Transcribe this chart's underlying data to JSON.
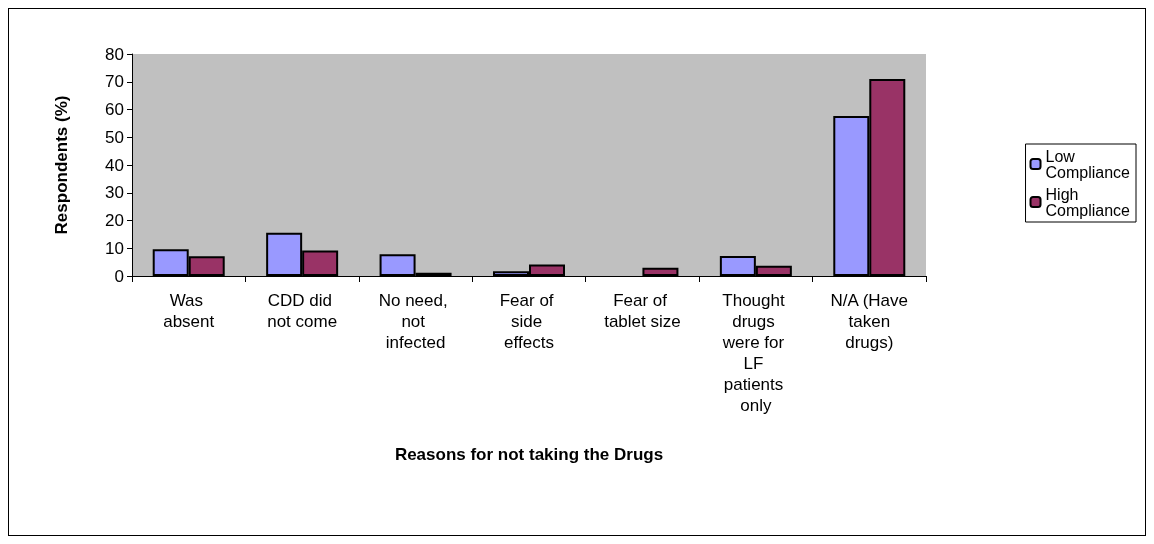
{
  "chart_data": {
    "type": "bar",
    "xlabel": "Reasons for not taking the Drugs",
    "ylabel": "Respondents (%)",
    "categories": [
      "Was absent",
      "CDD did not come",
      "No need, not infected",
      "Fear of side effects",
      "Fear of tablet size",
      "Thought drugs were for LF patients only",
      "N/A (Have taken drugs)"
    ],
    "series": [
      {
        "name": "Low Compliance",
        "color": "#9999ff",
        "values": [
          9.6,
          15.6,
          7.8,
          1.7,
          0,
          7.2,
          57.7
        ]
      },
      {
        "name": "High Compliance",
        "color": "#993366",
        "values": [
          7.1,
          9.2,
          1.2,
          4.1,
          3.0,
          3.7,
          71
        ]
      }
    ],
    "ylim": [
      0,
      80
    ],
    "yticks": [
      0,
      10,
      20,
      30,
      40,
      50,
      60,
      70,
      80
    ],
    "grid": false,
    "legend": "right"
  }
}
